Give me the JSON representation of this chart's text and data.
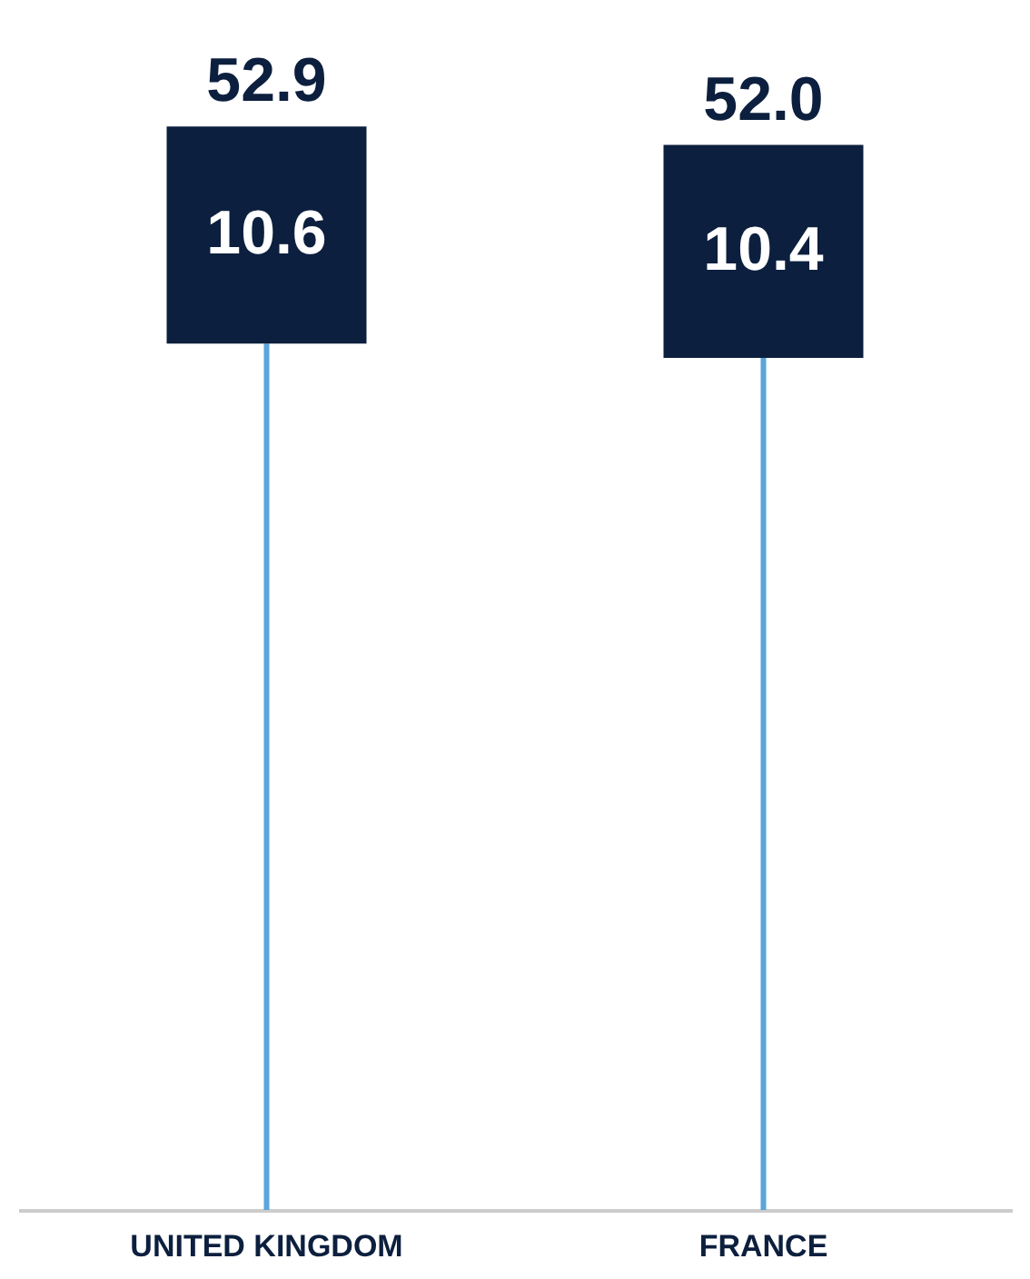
{
  "chart_data": {
    "type": "bar",
    "stacked": true,
    "categories": [
      "UNITED KINGDOM",
      "FRANCE"
    ],
    "tick_labels": "x",
    "grid": false,
    "series": [
      {
        "color": "#5aa5dc",
        "values": [
          42.3,
          41.6
        ]
      },
      {
        "color": "#0c1f3e",
        "values": [
          10.6,
          10.4
        ],
        "value_labels": [
          "10.6",
          "10.4"
        ]
      }
    ],
    "totals": [
      "52.9",
      "52.0"
    ]
  }
}
